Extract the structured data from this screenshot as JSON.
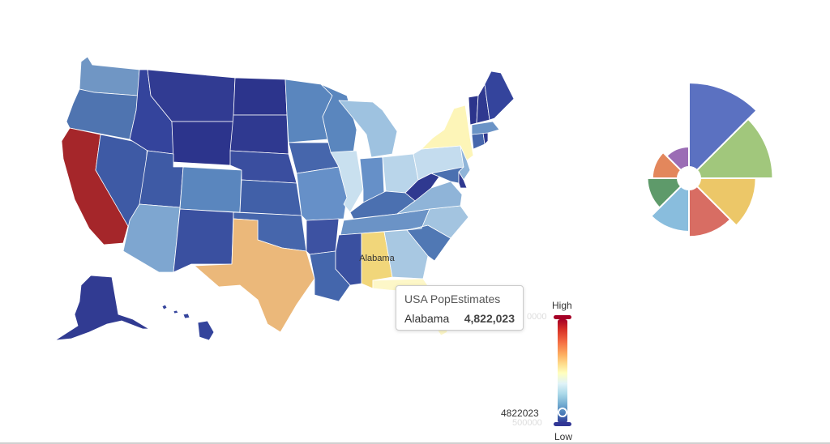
{
  "map": {
    "highlight_label": "Alabama",
    "states": [
      {
        "name": "Washington",
        "color": "#7096c4"
      },
      {
        "name": "Oregon",
        "color": "#4f74b0"
      },
      {
        "name": "California",
        "color": "#a5262a"
      },
      {
        "name": "Nevada",
        "color": "#3e5aa5"
      },
      {
        "name": "Idaho",
        "color": "#34449c"
      },
      {
        "name": "Montana",
        "color": "#313b92"
      },
      {
        "name": "Wyoming",
        "color": "#2c348c"
      },
      {
        "name": "Utah",
        "color": "#3e5aa5"
      },
      {
        "name": "Arizona",
        "color": "#7ea6d0"
      },
      {
        "name": "Colorado",
        "color": "#5a86be"
      },
      {
        "name": "New Mexico",
        "color": "#3a50a0"
      },
      {
        "name": "North Dakota",
        "color": "#2c348c"
      },
      {
        "name": "South Dakota",
        "color": "#2f3990"
      },
      {
        "name": "Nebraska",
        "color": "#3a4e9f"
      },
      {
        "name": "Kansas",
        "color": "#4160a8"
      },
      {
        "name": "Oklahoma",
        "color": "#4666ac"
      },
      {
        "name": "Texas",
        "color": "#ebb87a"
      },
      {
        "name": "Minnesota",
        "color": "#5a86be"
      },
      {
        "name": "Iowa",
        "color": "#4666ac"
      },
      {
        "name": "Missouri",
        "color": "#6690c8"
      },
      {
        "name": "Arkansas",
        "color": "#3d52a2"
      },
      {
        "name": "Louisiana",
        "color": "#4466ac"
      },
      {
        "name": "Wisconsin",
        "color": "#5a86be"
      },
      {
        "name": "Illinois",
        "color": "#c9e0ef"
      },
      {
        "name": "Michigan",
        "color": "#9ec2e0"
      },
      {
        "name": "Indiana",
        "color": "#6690c8"
      },
      {
        "name": "Ohio",
        "color": "#b9d5ea"
      },
      {
        "name": "Kentucky",
        "color": "#4b70b0"
      },
      {
        "name": "Tennessee",
        "color": "#6b93c6"
      },
      {
        "name": "Mississippi",
        "color": "#3a50a0"
      },
      {
        "name": "Alabama",
        "color": "#f1d67a"
      },
      {
        "name": "Georgia",
        "color": "#a8c8e2"
      },
      {
        "name": "Florida",
        "color": "#fdf7c8"
      },
      {
        "name": "South Carolina",
        "color": "#5078b4"
      },
      {
        "name": "North Carolina",
        "color": "#a3c4e0"
      },
      {
        "name": "Virginia",
        "color": "#8fb4d8"
      },
      {
        "name": "West Virginia",
        "color": "#2f3990"
      },
      {
        "name": "Pennsylvania",
        "color": "#c4dcee"
      },
      {
        "name": "New York",
        "color": "#fdf5b8"
      },
      {
        "name": "New Jersey",
        "color": "#8fb4d8"
      },
      {
        "name": "Maryland",
        "color": "#4b70b0"
      },
      {
        "name": "Delaware",
        "color": "#2f3990"
      },
      {
        "name": "Connecticut",
        "color": "#4666ac"
      },
      {
        "name": "Rhode Island",
        "color": "#2f3990"
      },
      {
        "name": "Massachusetts",
        "color": "#6b93c6"
      },
      {
        "name": "Vermont",
        "color": "#2c348c"
      },
      {
        "name": "New Hampshire",
        "color": "#2f3990"
      },
      {
        "name": "Maine",
        "color": "#34449c"
      },
      {
        "name": "Alaska",
        "color": "#313b92"
      },
      {
        "name": "Hawaii",
        "color": "#34449c"
      }
    ]
  },
  "tooltip": {
    "title": "USA PopEstimates",
    "name": "Alabama",
    "value": "4,822,023"
  },
  "visual_map": {
    "high_label": "High",
    "low_label": "Low",
    "current_value": "4822023",
    "faint_min": "500000",
    "faint_top": "0000",
    "colors": [
      "#a50026",
      "#313695"
    ]
  },
  "rose": {
    "slices": [
      {
        "value": 100,
        "color": "#5b71c1"
      },
      {
        "value": 86,
        "color": "#a1c77c"
      },
      {
        "value": 66,
        "color": "#ecc768"
      },
      {
        "value": 56,
        "color": "#d86d63"
      },
      {
        "value": 50,
        "color": "#89bddd"
      },
      {
        "value": 36,
        "color": "#5e9a6a"
      },
      {
        "value": 30,
        "color": "#e3875c"
      },
      {
        "value": 24,
        "color": "#9b6db5"
      }
    ]
  }
}
